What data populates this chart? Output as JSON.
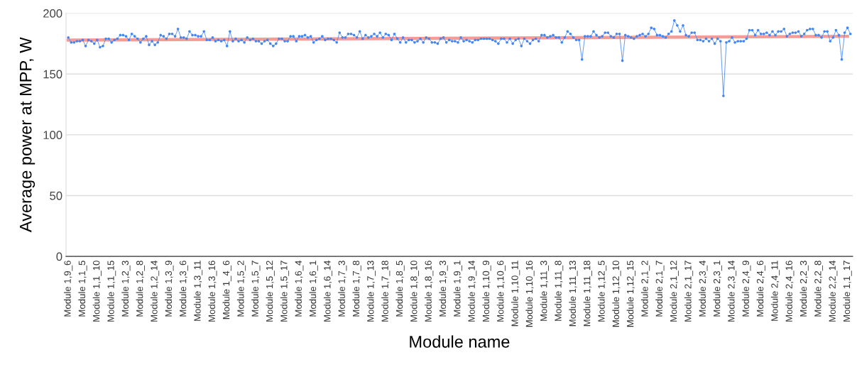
{
  "chart_data": {
    "type": "line",
    "xlabel": "Module name",
    "ylabel": "Average power at MPP, W",
    "categories": [
      "Module 1,9_6",
      null,
      null,
      null,
      null,
      "Module 1,1_5",
      null,
      null,
      null,
      null,
      "Module 1,1_10",
      null,
      null,
      null,
      null,
      "Module 1,1_15",
      null,
      null,
      null,
      null,
      "Module 1,2_3",
      null,
      null,
      null,
      null,
      "Module 1,2_8",
      null,
      null,
      null,
      null,
      "Module 1,2_14",
      null,
      null,
      null,
      null,
      "Module 1,3_9",
      null,
      null,
      null,
      null,
      "Module 1,3_6",
      null,
      null,
      null,
      null,
      "Module 1,3_11",
      null,
      null,
      null,
      null,
      "Module 1,3_16",
      null,
      null,
      null,
      null,
      "Module 1_4_6",
      null,
      null,
      null,
      null,
      "Module 1,5_2",
      null,
      null,
      null,
      null,
      "Module 1,5_7",
      null,
      null,
      null,
      null,
      "Module 1,5_12",
      null,
      null,
      null,
      null,
      "Module 1,5_17",
      null,
      null,
      null,
      null,
      "Module 1,6_4",
      null,
      null,
      null,
      null,
      "Module 1,6_1",
      null,
      null,
      null,
      null,
      "Module 1,6_14",
      null,
      null,
      null,
      null,
      "Module 1,7_3",
      null,
      null,
      null,
      null,
      "Module 1,7_8",
      null,
      null,
      null,
      null,
      "Module 1,7_13",
      null,
      null,
      null,
      null,
      "Module 1,7_18",
      null,
      null,
      null,
      null,
      "Module 1,8_5",
      null,
      null,
      null,
      null,
      "Module 1,8_10",
      null,
      null,
      null,
      null,
      "Module 1,8_16",
      null,
      null,
      null,
      null,
      "Module 1,9_3",
      null,
      null,
      null,
      null,
      "Module 1,9_1",
      null,
      null,
      null,
      null,
      "Module 1,9_14",
      null,
      null,
      null,
      null,
      "Module 1,10_9",
      null,
      null,
      null,
      null,
      "Module 1,10_6",
      null,
      null,
      null,
      null,
      "Module 1,10_11",
      null,
      null,
      null,
      null,
      "Module 1,10_16",
      null,
      null,
      null,
      null,
      "Module 1,11_3",
      null,
      null,
      null,
      null,
      "Module 1,11_8",
      null,
      null,
      null,
      null,
      "Module 1,11_13",
      null,
      null,
      null,
      null,
      "Module 1,11_18",
      null,
      null,
      null,
      null,
      "Module 1,12_5",
      null,
      null,
      null,
      null,
      "Module 1,12_10",
      null,
      null,
      null,
      null,
      "Module 1,12_15",
      null,
      null,
      null,
      null,
      "Module 2,1_2",
      null,
      null,
      null,
      null,
      "Module 2,1_7",
      null,
      null,
      null,
      null,
      "Module 2,1_12",
      null,
      null,
      null,
      null,
      "Module 2,1_17",
      null,
      null,
      null,
      null,
      "Module 2,3_4",
      null,
      null,
      null,
      null,
      "Module 2,3_1",
      null,
      null,
      null,
      null,
      "Module 2,3_14",
      null,
      null,
      null,
      null,
      "Module 2,4_9",
      null,
      null,
      null,
      null,
      "Module 2,4_6",
      null,
      null,
      null,
      null,
      "Module 2,4_11",
      null,
      null,
      null,
      null,
      "Module 2,4_16",
      null,
      null,
      null,
      null,
      "Module 2,2_3",
      null,
      null,
      null,
      null,
      "Module 2,2_8",
      null,
      null,
      null,
      null,
      "Module 2,2_14",
      null,
      null,
      null,
      null,
      "Module 1,1_17",
      null
    ],
    "series": [
      {
        "color": "#4285f4",
        "marker": "circle",
        "line_style": "solid",
        "values": [
          180,
          176,
          176,
          177,
          177,
          178,
          173,
          178,
          177,
          175,
          178,
          172,
          173,
          179,
          179,
          176,
          178,
          179,
          182,
          182,
          181,
          178,
          183,
          181,
          179,
          176,
          179,
          181,
          174,
          177,
          174,
          176,
          182,
          181,
          179,
          183,
          183,
          181,
          187,
          180,
          180,
          179,
          185,
          182,
          182,
          181,
          181,
          185,
          178,
          178,
          180,
          177,
          178,
          177,
          178,
          173,
          185,
          177,
          179,
          177,
          178,
          176,
          180,
          178,
          179,
          177,
          177,
          175,
          177,
          178,
          175,
          173,
          175,
          179,
          179,
          177,
          177,
          181,
          181,
          177,
          181,
          181,
          182,
          180,
          181,
          176,
          178,
          179,
          181,
          178,
          179,
          179,
          178,
          176,
          184,
          180,
          180,
          183,
          183,
          182,
          180,
          185,
          179,
          182,
          180,
          181,
          183,
          181,
          184,
          180,
          183,
          182,
          178,
          183,
          179,
          176,
          180,
          176,
          178,
          178,
          176,
          177,
          179,
          176,
          180,
          179,
          176,
          176,
          175,
          179,
          180,
          176,
          178,
          177,
          177,
          176,
          180,
          177,
          178,
          177,
          176,
          178,
          178,
          179,
          179,
          179,
          179,
          178,
          177,
          175,
          179,
          179,
          176,
          179,
          175,
          178,
          179,
          173,
          179,
          177,
          175,
          178,
          179,
          177,
          182,
          182,
          180,
          181,
          182,
          180,
          180,
          176,
          180,
          185,
          183,
          180,
          178,
          178,
          162,
          181,
          181,
          181,
          185,
          182,
          180,
          181,
          184,
          184,
          181,
          180,
          183,
          183,
          161,
          182,
          181,
          180,
          179,
          181,
          182,
          183,
          181,
          183,
          188,
          187,
          182,
          182,
          181,
          180,
          183,
          185,
          194,
          190,
          185,
          190,
          182,
          181,
          184,
          184,
          178,
          178,
          177,
          179,
          177,
          179,
          175,
          179,
          177,
          132,
          176,
          177,
          180,
          176,
          177,
          177,
          177,
          179,
          186,
          186,
          182,
          186,
          183,
          183,
          184,
          182,
          185,
          182,
          185,
          185,
          187,
          181,
          183,
          184,
          184,
          185,
          181,
          183,
          186,
          187,
          187,
          182,
          182,
          180,
          185,
          185,
          177,
          180,
          186,
          182,
          162,
          184,
          188,
          183
        ]
      },
      {
        "type": "line",
        "color": "#f28b82",
        "marker": "none",
        "line_style": "solid",
        "x": [
          "Module 1,9_6",
          "Module 1,1_17"
        ],
        "values": [
          177.9,
          181
        ]
      }
    ],
    "ylim": [
      0,
      200
    ],
    "yticks": [
      0,
      50,
      100,
      150,
      200
    ],
    "grid": "y"
  }
}
